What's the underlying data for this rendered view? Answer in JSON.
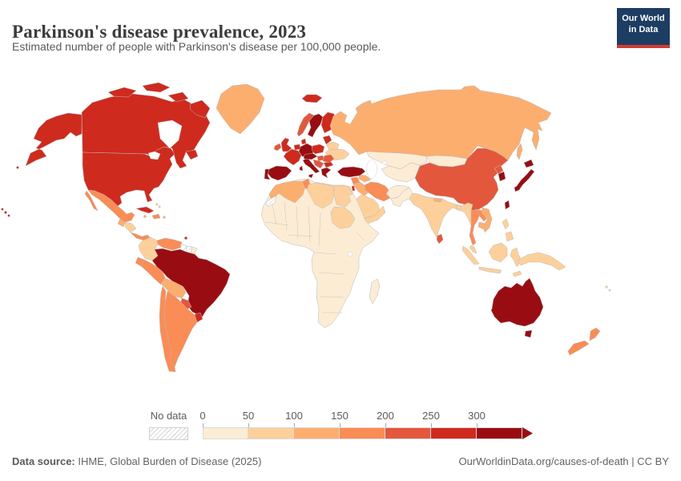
{
  "header": {
    "title": "Parkinson's disease prevalence, 2023",
    "subtitle": "Estimated number of people with Parkinson's disease per 100,000 people."
  },
  "logo": {
    "line1": "Our World",
    "line2": "in Data",
    "bg": "#1d3d63",
    "bar": "#cf3b32"
  },
  "legend": {
    "no_data_label": "No data",
    "ticks": [
      "0",
      "50",
      "100",
      "150",
      "200",
      "250",
      "300"
    ]
  },
  "footer": {
    "source_label": "Data source:",
    "source_text": " IHME, Global Burden of Disease (2025)",
    "credit": "OurWorldinData.org/causes-of-death | CC BY"
  },
  "chart_data": {
    "type": "heatmap",
    "subtype": "world-choropleth-map",
    "title": "Parkinson's disease prevalence, 2023",
    "unit": "people with Parkinson's disease per 100,000 people",
    "legend_position": "bottom",
    "legend_bins": [
      {
        "label": "0-50",
        "color": "#fcecd4"
      },
      {
        "label": "50-100",
        "color": "#fdd09b"
      },
      {
        "label": "100-150",
        "color": "#fcae6f"
      },
      {
        "label": "150-200",
        "color": "#fa8c55"
      },
      {
        "label": "200-250",
        "color": "#e3583c"
      },
      {
        "label": "250-300",
        "color": "#cf2a1e"
      },
      {
        "label": "300+",
        "color": "#990d12"
      }
    ],
    "no_data": {
      "label": "No data",
      "pattern": "diagonal-hatch"
    },
    "countries": {
      "canada": {
        "name": "Canada",
        "bin": 5
      },
      "united-states": {
        "name": "United States",
        "bin": 5
      },
      "greenland": {
        "name": "Greenland",
        "bin": 2
      },
      "mexico": {
        "name": "Mexico",
        "bin": 3
      },
      "guatemala": {
        "name": "Guatemala",
        "bin": 2
      },
      "honduras-nicaragua": {
        "name": "Honduras / Nicaragua",
        "bin": 1
      },
      "costa-rica-panama": {
        "name": "Costa Rica / Panama",
        "bin": 3
      },
      "cuba": {
        "name": "Cuba",
        "bin": 5
      },
      "jamaica": {
        "name": "Jamaica",
        "bin": 2
      },
      "hispaniola": {
        "name": "Haiti / Dominican Republic",
        "bin": 3
      },
      "puerto-rico": {
        "name": "Puerto Rico",
        "bin": 2
      },
      "bahamas": {
        "name": "Bahamas",
        "bin": 1
      },
      "trinidad": {
        "name": "Trinidad and Tobago",
        "bin": 5
      },
      "colombia": {
        "name": "Colombia",
        "bin": 1
      },
      "venezuela": {
        "name": "Venezuela",
        "bin": 3
      },
      "guyana": {
        "name": "Guyana",
        "bin": "no-data"
      },
      "suriname": {
        "name": "Suriname",
        "bin": "no-data"
      },
      "french-guiana": {
        "name": "French Guiana",
        "bin": 0
      },
      "ecuador": {
        "name": "Ecuador",
        "bin": 3
      },
      "peru": {
        "name": "Peru",
        "bin": 3
      },
      "brazil": {
        "name": "Brazil",
        "bin": 6
      },
      "bolivia": {
        "name": "Bolivia",
        "bin": 2
      },
      "paraguay": {
        "name": "Paraguay",
        "bin": 4
      },
      "uruguay": {
        "name": "Uruguay",
        "bin": 5
      },
      "argentina": {
        "name": "Argentina",
        "bin": 3
      },
      "chile": {
        "name": "Chile",
        "bin": 3
      },
      "iceland": {
        "name": "Iceland",
        "bin": 5
      },
      "norway": {
        "name": "Norway",
        "bin": 4
      },
      "sweden": {
        "name": "Sweden",
        "bin": 6
      },
      "finland": {
        "name": "Finland",
        "bin": 5
      },
      "denmark": {
        "name": "Denmark",
        "bin": 5
      },
      "united-kingdom": {
        "name": "United Kingdom",
        "bin": 5
      },
      "ireland": {
        "name": "Ireland",
        "bin": 4
      },
      "france": {
        "name": "France",
        "bin": 5
      },
      "benelux": {
        "name": "Belgium / Netherlands",
        "bin": 5
      },
      "germany": {
        "name": "Germany",
        "bin": 6
      },
      "poland": {
        "name": "Poland",
        "bin": 5
      },
      "czech-austria": {
        "name": "Czechia / Austria / Switzerland",
        "bin": 6
      },
      "hungary": {
        "name": "Hungary / Slovakia",
        "bin": 4
      },
      "baltics": {
        "name": "Baltic states",
        "bin": 5
      },
      "belarus": {
        "name": "Belarus",
        "bin": 1
      },
      "ukraine": {
        "name": "Ukraine",
        "bin": 1
      },
      "romania": {
        "name": "Romania",
        "bin": 4
      },
      "bulgaria": {
        "name": "Bulgaria",
        "bin": 5
      },
      "balkans": {
        "name": "Western Balkans",
        "bin": 4
      },
      "greece": {
        "name": "Greece",
        "bin": 6
      },
      "italy": {
        "name": "Italy",
        "bin": 6
      },
      "spain": {
        "name": "Spain",
        "bin": 6
      },
      "portugal": {
        "name": "Portugal",
        "bin": 6
      },
      "russia": {
        "name": "Russia",
        "bin": 2
      },
      "kazakhstan": {
        "name": "Kazakhstan",
        "bin": 0
      },
      "central-asia": {
        "name": "Central Asia",
        "bin": 0
      },
      "caucasus": {
        "name": "Caucasus",
        "bin": 2
      },
      "turkey": {
        "name": "Turkey",
        "bin": 6
      },
      "syria": {
        "name": "Syria",
        "bin": 3
      },
      "israel": {
        "name": "Israel",
        "bin": 5
      },
      "iraq": {
        "name": "Iraq",
        "bin": 2
      },
      "iran": {
        "name": "Iran",
        "bin": 3
      },
      "saudi-arabia": {
        "name": "Saudi Arabia",
        "bin": 1
      },
      "yemen-oman": {
        "name": "Yemen / Oman",
        "bin": 1
      },
      "afghanistan": {
        "name": "Afghanistan",
        "bin": 0
      },
      "pakistan": {
        "name": "Pakistan",
        "bin": 0
      },
      "india": {
        "name": "India",
        "bin": 1
      },
      "nepal": {
        "name": "Nepal",
        "bin": 2
      },
      "bangladesh": {
        "name": "Bangladesh",
        "bin": 1
      },
      "sri-lanka": {
        "name": "Sri Lanka",
        "bin": 4
      },
      "myanmar": {
        "name": "Myanmar",
        "bin": 1
      },
      "thailand": {
        "name": "Thailand",
        "bin": 3
      },
      "laos": {
        "name": "Laos",
        "bin": 3
      },
      "vietnam": {
        "name": "Vietnam",
        "bin": 2
      },
      "cambodia": {
        "name": "Cambodia",
        "bin": 2
      },
      "malaysia": {
        "name": "Malaysia",
        "bin": 1
      },
      "indonesia": {
        "name": "Indonesia",
        "bin": 1
      },
      "philippines": {
        "name": "Philippines",
        "bin": 1
      },
      "china": {
        "name": "China",
        "bin": 4
      },
      "mongolia": {
        "name": "Mongolia",
        "bin": 0
      },
      "north-korea": {
        "name": "North Korea",
        "bin": 4
      },
      "south-korea": {
        "name": "South Korea",
        "bin": 6
      },
      "japan": {
        "name": "Japan",
        "bin": 6
      },
      "taiwan": {
        "name": "Taiwan",
        "bin": 6
      },
      "papua-new-guinea": {
        "name": "Papua New Guinea",
        "bin": 1
      },
      "fiji": {
        "name": "Fiji",
        "bin": 1
      },
      "australia": {
        "name": "Australia",
        "bin": 6
      },
      "new-zealand": {
        "name": "New Zealand",
        "bin": 3
      },
      "africa-subsaharan": {
        "name": "Sub-Saharan Africa",
        "bin": 0
      },
      "morocco": {
        "name": "Morocco",
        "bin": 2
      },
      "western-sahara": {
        "name": "Western Sahara",
        "bin": "no-data"
      },
      "algeria": {
        "name": "Algeria",
        "bin": 2
      },
      "tunisia": {
        "name": "Tunisia",
        "bin": 3
      },
      "libya": {
        "name": "Libya",
        "bin": 1
      },
      "egypt": {
        "name": "Egypt",
        "bin": 1
      },
      "sudan": {
        "name": "Sudan",
        "bin": 1
      },
      "madagascar": {
        "name": "Madagascar",
        "bin": 0
      }
    }
  }
}
